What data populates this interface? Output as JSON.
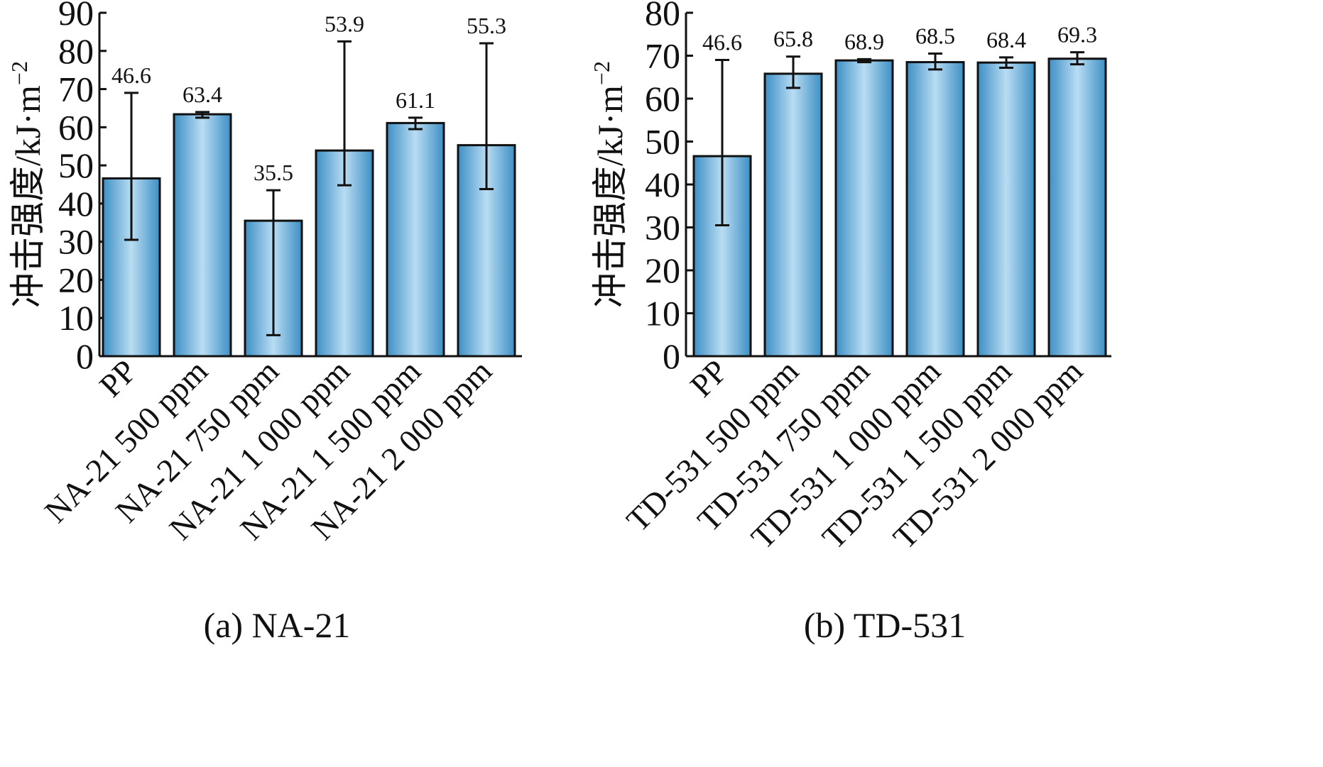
{
  "chart_data": [
    {
      "type": "bar",
      "caption": "(a) NA-21",
      "ylabel": "冲击强度/kJ·m",
      "ylabel_exponent": "−2",
      "ylim": [
        0,
        90
      ],
      "yticks": [
        0,
        10,
        20,
        30,
        40,
        50,
        60,
        70,
        80,
        90
      ],
      "categories": [
        "PP",
        "NA-21 500 ppm",
        "NA-21 750 ppm",
        "NA-21 1 000 ppm",
        "NA-21 1 500 ppm",
        "NA-21 2 000 ppm"
      ],
      "values": [
        46.6,
        63.4,
        35.5,
        53.9,
        61.1,
        55.3
      ],
      "value_labels": [
        "46.6",
        "63.4",
        "35.5",
        "53.9",
        "61.1",
        "55.3"
      ],
      "error_low": [
        30.5,
        62.5,
        5.5,
        44.8,
        59.5,
        43.8
      ],
      "error_high": [
        69.0,
        64.0,
        43.5,
        82.5,
        62.5,
        82.0
      ],
      "bar_color": "#8cc5e8",
      "bar_edge_color": "#3d8fc4"
    },
    {
      "type": "bar",
      "caption": "(b) TD-531",
      "ylabel": "冲击强度/kJ·m",
      "ylabel_exponent": "−2",
      "ylim": [
        0,
        80
      ],
      "yticks": [
        0,
        10,
        20,
        30,
        40,
        50,
        60,
        70,
        80
      ],
      "categories": [
        "PP",
        "TD-531 500 ppm",
        "TD-531 750 ppm",
        "TD-531 1 000 ppm",
        "TD-531 1 500 ppm",
        "TD-531 2 000 ppm"
      ],
      "values": [
        46.6,
        65.8,
        68.9,
        68.5,
        68.4,
        69.3
      ],
      "value_labels": [
        "46.6",
        "65.8",
        "68.9",
        "68.5",
        "68.4",
        "69.3"
      ],
      "error_low": [
        30.5,
        62.5,
        68.5,
        66.8,
        67.2,
        68.0
      ],
      "error_high": [
        69.0,
        69.8,
        69.2,
        70.5,
        69.6,
        70.8
      ],
      "bar_color": "#8cc5e8",
      "bar_edge_color": "#3d8fc4"
    }
  ]
}
